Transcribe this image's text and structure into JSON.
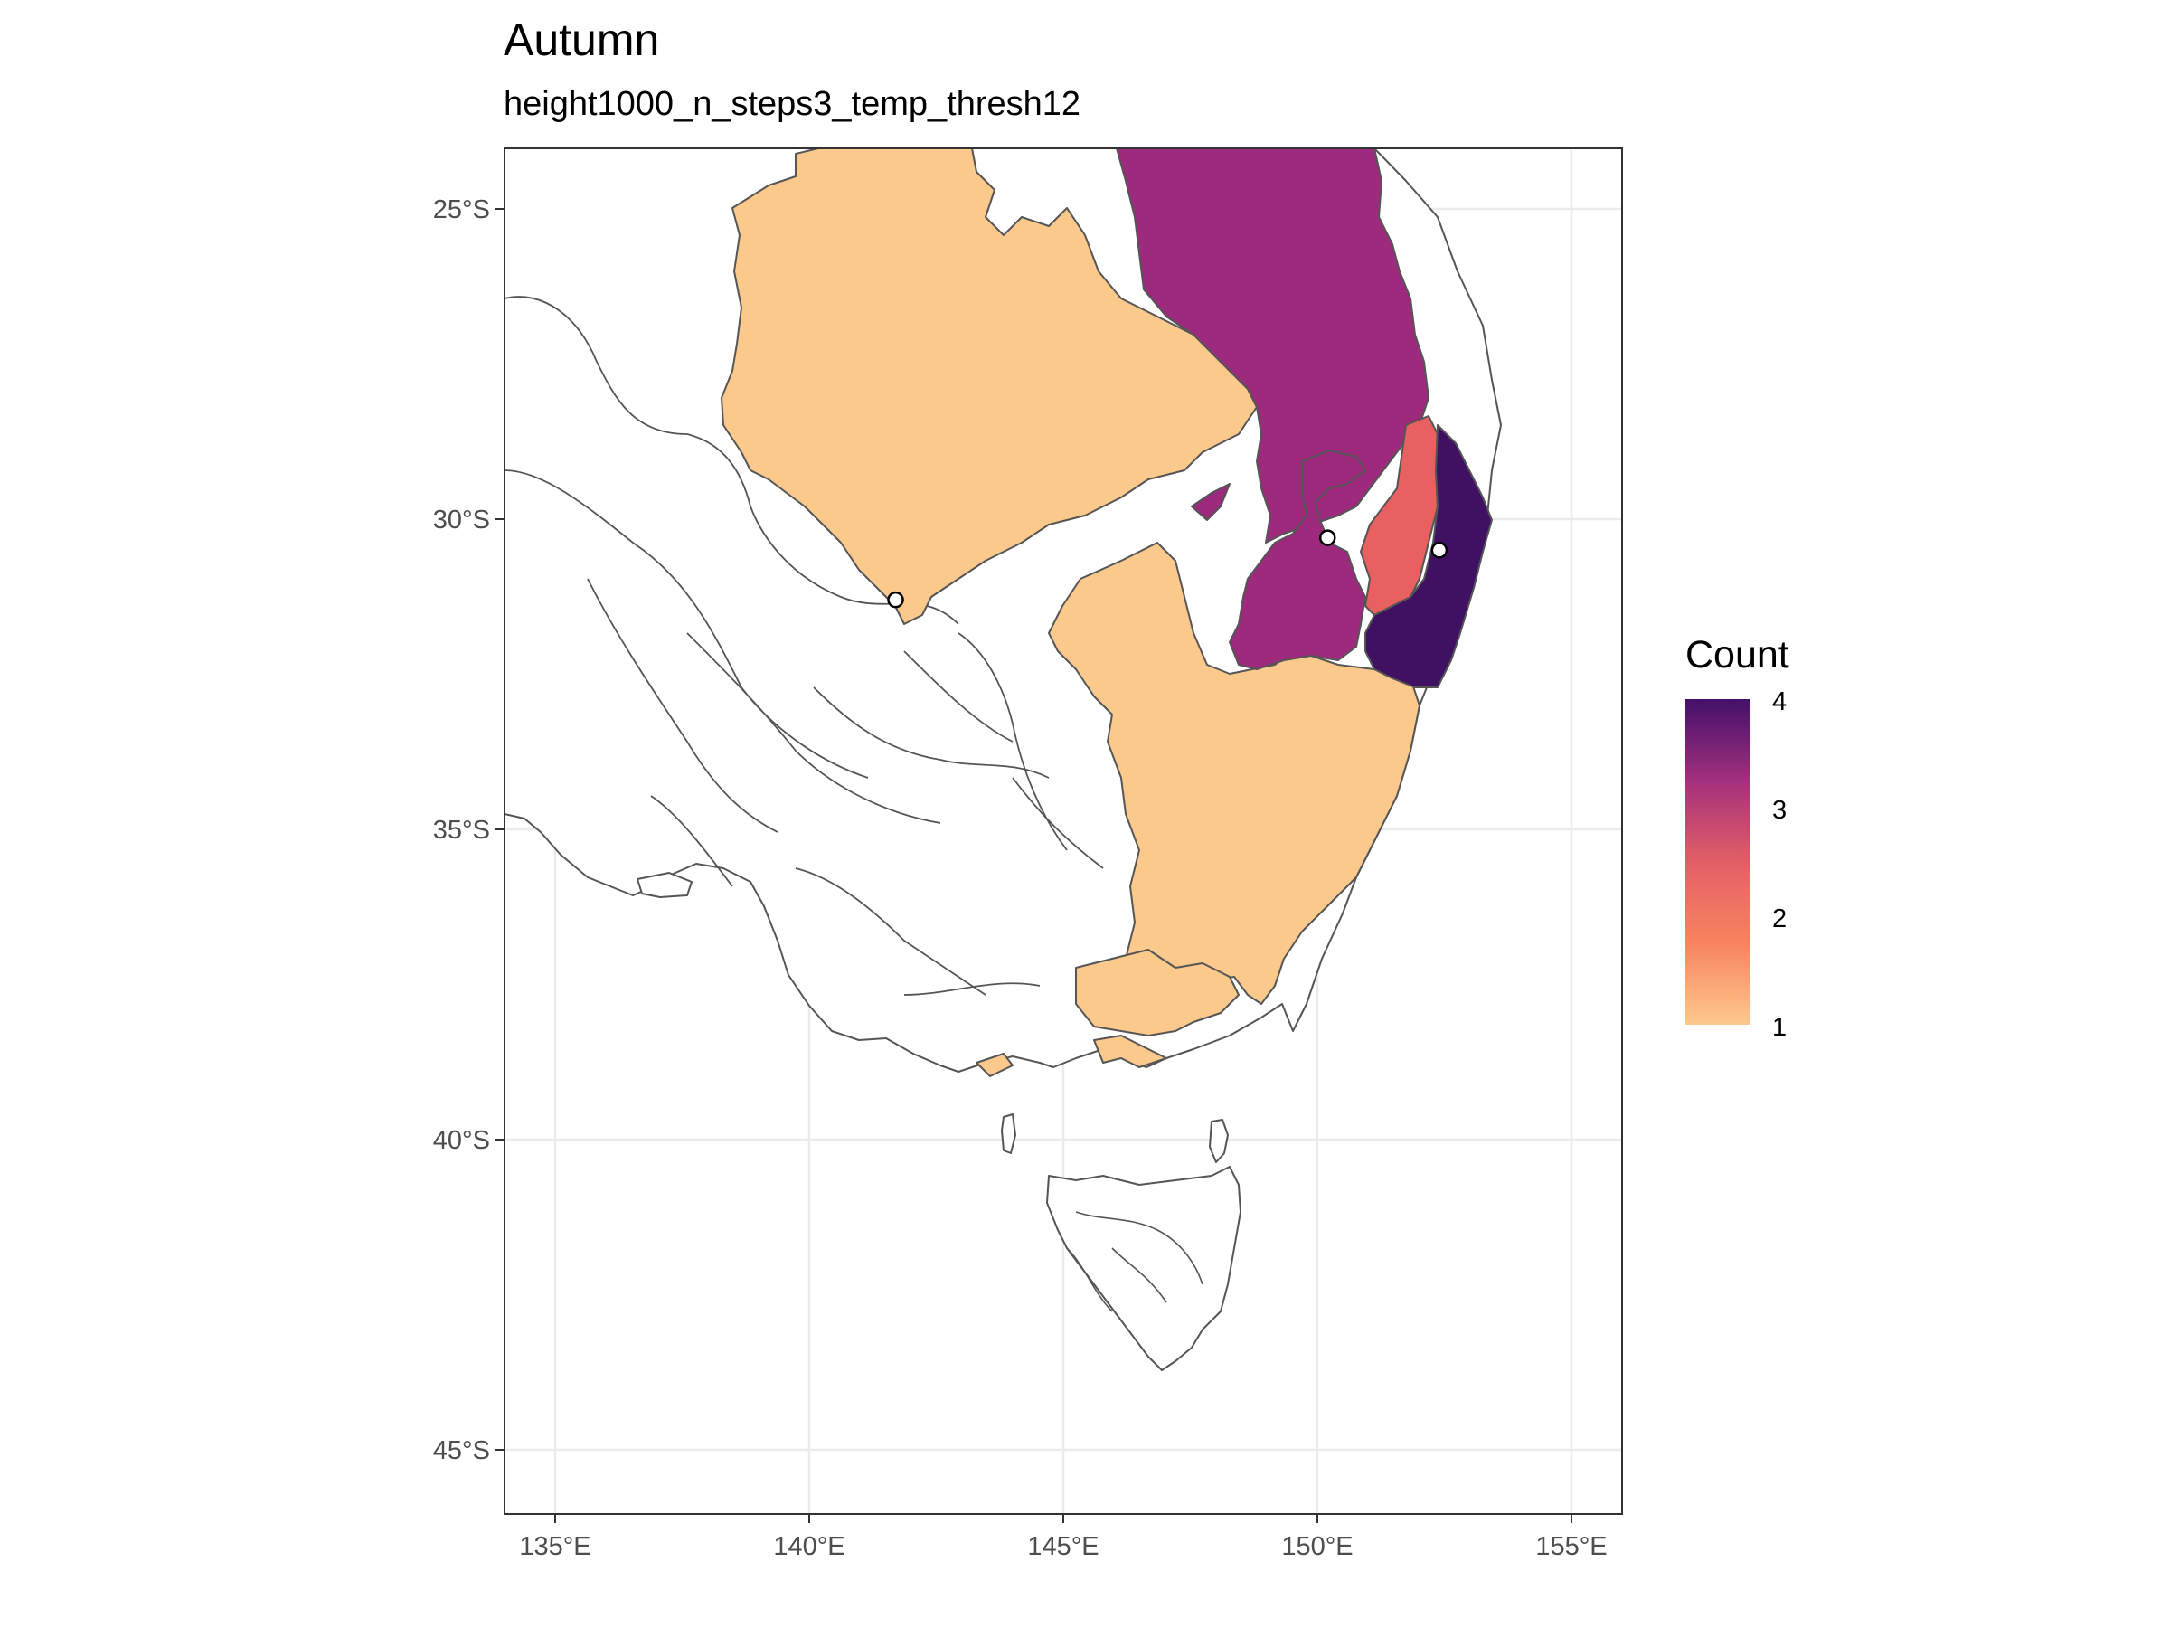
{
  "title": "Autumn",
  "subtitle": "height1000_n_steps3_temp_thresh12",
  "x_axis": {
    "ticks": [
      135,
      140,
      145,
      150,
      155
    ],
    "tick_labels": [
      "135°E",
      "140°E",
      "145°E",
      "150°E",
      "155°E"
    ],
    "range": [
      134,
      156
    ]
  },
  "y_axis": {
    "ticks": [
      -25,
      -30,
      -35,
      -40,
      -45
    ],
    "tick_labels": [
      "25°S",
      "30°S",
      "35°S",
      "40°S",
      "45°S"
    ],
    "range": [
      -46,
      -24
    ]
  },
  "grid": true,
  "legend": {
    "title": "Count",
    "position": "right",
    "min": 1,
    "max": 4,
    "labels": [
      "4",
      "3",
      "2",
      "1"
    ],
    "colors": [
      "#FDC98D",
      "#F8845F",
      "#E35F66",
      "#A2307D",
      "#43106A"
    ]
  },
  "category_colors": {
    "1": "#FCC98C",
    "2": "#E8605F",
    "3": "#9E2A7E",
    "4": "#401062"
  },
  "points": [
    {
      "lon": 141.7,
      "lat": -31.3
    },
    {
      "lon": 150.2,
      "lat": -30.3
    },
    {
      "lon": 152.4,
      "lat": -30.5
    }
  ]
}
